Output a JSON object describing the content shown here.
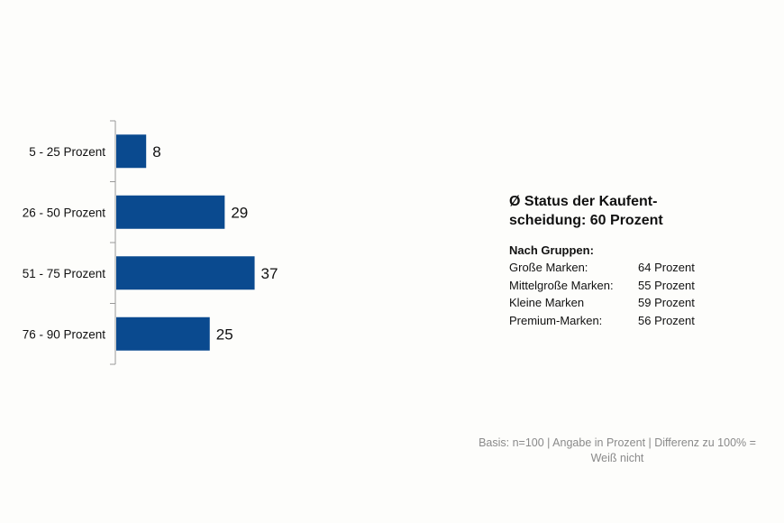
{
  "chart_data": {
    "type": "bar",
    "orientation": "horizontal",
    "categories": [
      "5 - 25 Prozent",
      "26 - 50 Prozent",
      "51 - 75 Prozent",
      "76 - 90 Prozent"
    ],
    "values": [
      8,
      29,
      37,
      25
    ],
    "title": "",
    "xlabel": "",
    "ylabel": "",
    "xlim": [
      0,
      40
    ],
    "grid": false,
    "bar_color": "#0a4a8f"
  },
  "info": {
    "title_line1": "Ø Status der Kaufent-",
    "title_line2": "scheidung: 60 Prozent",
    "subtitle": "Nach Gruppen:",
    "groups": [
      {
        "name": "Große Marken:",
        "value": "64 Prozent"
      },
      {
        "name": "Mittelgroße Marken:",
        "value": "55 Prozent"
      },
      {
        "name": "Kleine Marken",
        "value": "59 Prozent"
      },
      {
        "name": "Premium-Marken:",
        "value": "56 Prozent"
      }
    ]
  },
  "footnote": {
    "line1": "Basis: n=100 | Angabe in Prozent | Differenz zu 100% =",
    "line2": "Weiß nicht"
  }
}
